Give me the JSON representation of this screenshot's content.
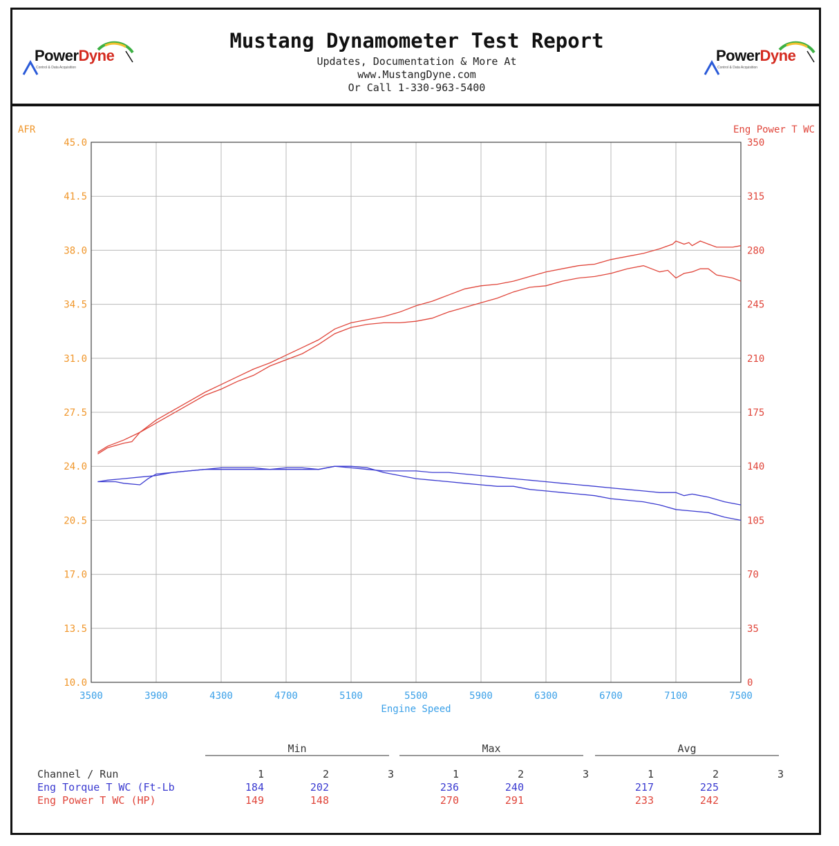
{
  "header": {
    "title": "Mustang Dynamometer Test Report",
    "line1": "Updates, Documentation & More At",
    "line2": "www.MustangDyne.com",
    "line3": "Or Call 1-330-963-5400",
    "logo_part1": "Power",
    "logo_part2": "Dyne",
    "logo_tagline": "Control & Data Acquisition"
  },
  "colors": {
    "afr": "#f0962a",
    "power": "#e0453a",
    "torque": "#3a3ad0",
    "speed": "#3aa0e8",
    "grid": "#b8b8b8"
  },
  "chart_data": {
    "type": "line",
    "xlabel": "Engine Speed",
    "left_axis_label": "AFR",
    "right_axis_label": "Eng Power T WC",
    "xlim": [
      3500,
      7500
    ],
    "left_ylim": [
      10.0,
      45.0
    ],
    "right_ylim": [
      0,
      350
    ],
    "x_ticks": [
      "3500",
      "3900",
      "4300",
      "4700",
      "5100",
      "5500",
      "5900",
      "6300",
      "6700",
      "7100",
      "7500"
    ],
    "left_ticks": [
      "10.0",
      "13.5",
      "17.0",
      "20.5",
      "24.0",
      "27.5",
      "31.0",
      "34.5",
      "38.0",
      "41.5",
      "45.0"
    ],
    "right_ticks": [
      "0",
      "35",
      "70",
      "105",
      "140",
      "175",
      "210",
      "245",
      "280",
      "315",
      "350"
    ],
    "grid": true,
    "series": [
      {
        "name": "Eng Power T WC (HP)",
        "run": "1",
        "color_key": "power",
        "x": [
          3540,
          3600,
          3700,
          3800,
          3900,
          4000,
          4100,
          4200,
          4300,
          4400,
          4500,
          4600,
          4700,
          4800,
          4900,
          5000,
          5100,
          5200,
          5300,
          5400,
          5500,
          5600,
          5700,
          5800,
          5900,
          6000,
          6100,
          6200,
          6300,
          6400,
          6500,
          6600,
          6700,
          6800,
          6900,
          7000,
          7050,
          7100,
          7150,
          7200,
          7250,
          7300,
          7350,
          7400,
          7450,
          7500
        ],
        "y": [
          149,
          153,
          157,
          162,
          168,
          174,
          180,
          186,
          190,
          195,
          199,
          205,
          209,
          213,
          219,
          226,
          230,
          232,
          233,
          233,
          234,
          236,
          240,
          243,
          246,
          249,
          253,
          256,
          257,
          260,
          262,
          263,
          265,
          268,
          270,
          266,
          267,
          262,
          265,
          266,
          268,
          268,
          264,
          263,
          262,
          260
        ]
      },
      {
        "name": "Eng Power T WC (HP)",
        "run": "2",
        "color_key": "power",
        "x": [
          3540,
          3600,
          3700,
          3750,
          3800,
          3900,
          4000,
          4100,
          4200,
          4300,
          4400,
          4500,
          4600,
          4700,
          4800,
          4900,
          5000,
          5100,
          5200,
          5300,
          5400,
          5500,
          5600,
          5700,
          5800,
          5900,
          6000,
          6100,
          6200,
          6300,
          6400,
          6500,
          6600,
          6700,
          6800,
          6900,
          7000,
          7080,
          7100,
          7150,
          7180,
          7200,
          7250,
          7300,
          7350,
          7400,
          7450,
          7500
        ],
        "y": [
          148,
          152,
          155,
          156,
          162,
          170,
          176,
          182,
          188,
          193,
          198,
          203,
          207,
          212,
          217,
          222,
          229,
          233,
          235,
          237,
          240,
          244,
          247,
          251,
          255,
          257,
          258,
          260,
          263,
          266,
          268,
          270,
          271,
          274,
          276,
          278,
          281,
          284,
          286,
          284,
          285,
          283,
          286,
          284,
          282,
          282,
          282,
          283
        ]
      },
      {
        "name": "Eng Torque T WC (Ft-Lb",
        "run": "1",
        "color_key": "torque",
        "x": [
          3540,
          3600,
          3700,
          3800,
          3900,
          4000,
          4100,
          4200,
          4300,
          4400,
          4500,
          4600,
          4700,
          4800,
          4900,
          5000,
          5100,
          5200,
          5300,
          5400,
          5500,
          5600,
          5700,
          5800,
          5900,
          6000,
          6100,
          6200,
          6300,
          6400,
          6500,
          6600,
          6700,
          6800,
          6900,
          7000,
          7100,
          7200,
          7300,
          7400,
          7500
        ],
        "y": [
          23.0,
          23.1,
          23.2,
          23.3,
          23.4,
          23.6,
          23.7,
          23.8,
          23.8,
          23.8,
          23.8,
          23.8,
          23.8,
          23.8,
          23.8,
          24.0,
          24.0,
          23.9,
          23.6,
          23.4,
          23.2,
          23.1,
          23.0,
          22.9,
          22.8,
          22.7,
          22.7,
          22.5,
          22.4,
          22.3,
          22.2,
          22.1,
          21.9,
          21.8,
          21.7,
          21.5,
          21.2,
          21.1,
          21.0,
          20.7,
          20.5
        ]
      },
      {
        "name": "Eng Torque T WC (Ft-Lb",
        "run": "2",
        "color_key": "torque",
        "x": [
          3540,
          3600,
          3650,
          3700,
          3800,
          3850,
          3900,
          4000,
          4100,
          4200,
          4300,
          4400,
          4500,
          4600,
          4700,
          4800,
          4900,
          5000,
          5100,
          5200,
          5300,
          5400,
          5500,
          5600,
          5700,
          5800,
          5900,
          6000,
          6100,
          6200,
          6300,
          6400,
          6500,
          6600,
          6700,
          6800,
          6900,
          7000,
          7100,
          7150,
          7200,
          7250,
          7300,
          7400,
          7500
        ],
        "y": [
          23.0,
          23.0,
          23.0,
          22.9,
          22.8,
          23.2,
          23.5,
          23.6,
          23.7,
          23.8,
          23.9,
          23.9,
          23.9,
          23.8,
          23.9,
          23.9,
          23.8,
          24.0,
          23.9,
          23.8,
          23.7,
          23.7,
          23.7,
          23.6,
          23.6,
          23.5,
          23.4,
          23.3,
          23.2,
          23.1,
          23.0,
          22.9,
          22.8,
          22.7,
          22.6,
          22.5,
          22.4,
          22.3,
          22.3,
          22.1,
          22.2,
          22.1,
          22.0,
          21.7,
          21.5
        ]
      }
    ]
  },
  "stats": {
    "groups": [
      "Min",
      "Max",
      "Avg"
    ],
    "channel_header": "Channel / Run",
    "run_labels": [
      "1",
      "2",
      "3"
    ],
    "rows": [
      {
        "channel": "Eng Torque T WC (Ft-Lb",
        "color_key": "torque",
        "min": [
          "184",
          "202",
          ""
        ],
        "max": [
          "236",
          "240",
          ""
        ],
        "avg": [
          "217",
          "225",
          ""
        ]
      },
      {
        "channel": "Eng Power T WC (HP)",
        "color_key": "power",
        "min": [
          "149",
          "148",
          ""
        ],
        "max": [
          "270",
          "291",
          ""
        ],
        "avg": [
          "233",
          "242",
          ""
        ]
      }
    ]
  }
}
